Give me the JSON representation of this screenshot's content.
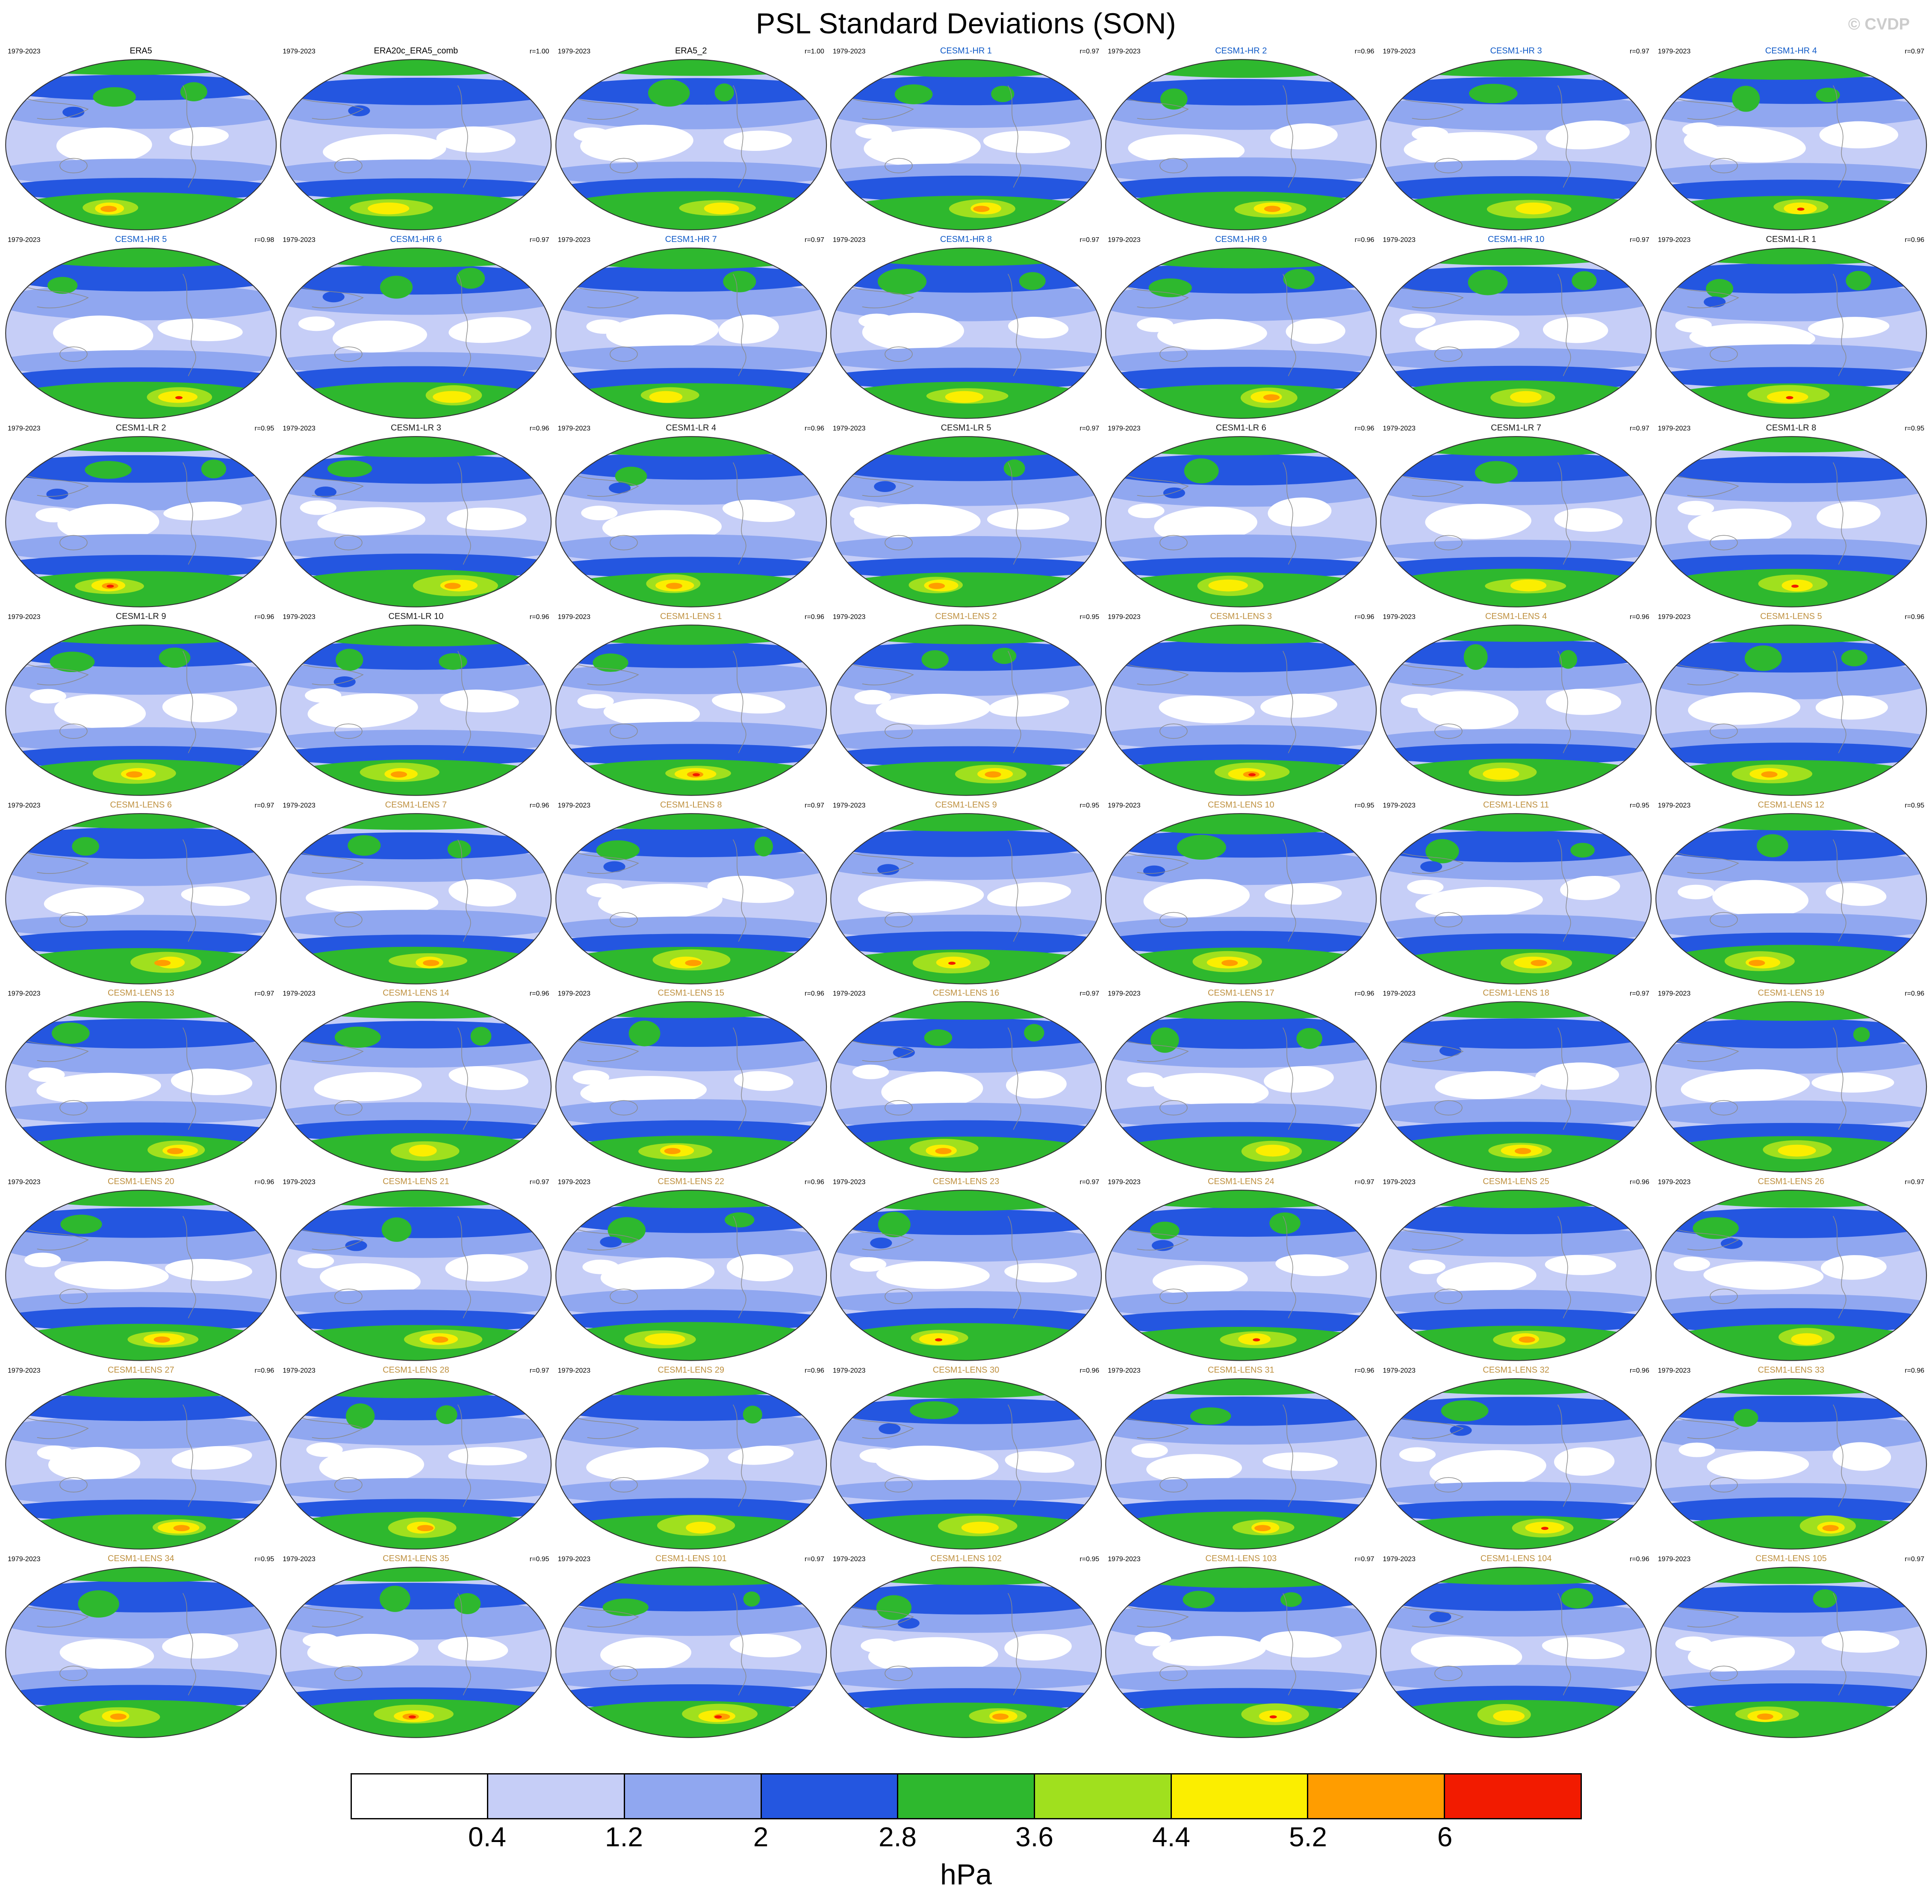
{
  "title": "PSL Standard Deviations (SON)",
  "watermark": "© CVDP",
  "period": "1979-2023",
  "colorbar": {
    "labels": [
      "0.4",
      "1.2",
      "2",
      "2.8",
      "3.6",
      "4.4",
      "5.2",
      "6"
    ],
    "unit": "hPa",
    "colors": [
      "#ffffff",
      "#c6cef7",
      "#90a7f0",
      "#2456e0",
      "#2eb82e",
      "#a0e01e",
      "#fbee00",
      "#ff9d00",
      "#f21b00"
    ]
  },
  "group_colors": {
    "obs": "#000000",
    "hr": "#0f5ac8",
    "lr": "#1a1a1a",
    "lens": "#bf9140"
  },
  "map_colors": {
    "white": "#ffffff",
    "pale": "#c6cef7",
    "mid": "#90a7f0",
    "blue": "#2456e0",
    "green": "#2eb82e",
    "ygreen": "#a0e01e",
    "yellow": "#fbee00",
    "orange": "#ff9d00",
    "red": "#f21b00",
    "coast": "#8a8a8a",
    "outline": "#333333"
  },
  "chart_data": {
    "type": "heatmap",
    "title": "PSL Standard Deviations (SON)",
    "unit": "hPa",
    "period": "1979-2023",
    "levels": [
      0.4,
      1.2,
      2,
      2.8,
      3.6,
      4.4,
      5.2,
      6
    ],
    "grid": {
      "rows": 9,
      "cols": 7
    },
    "panels": [
      {
        "title": "ERA5",
        "r": "",
        "group": "obs"
      },
      {
        "title": "ERA20c_ERA5_comb",
        "r": "r=1.00",
        "group": "obs"
      },
      {
        "title": "ERA5_2",
        "r": "r=1.00",
        "group": "obs"
      },
      {
        "title": "CESM1-HR 1",
        "r": "r=0.97",
        "group": "hr"
      },
      {
        "title": "CESM1-HR 2",
        "r": "r=0.96",
        "group": "hr"
      },
      {
        "title": "CESM1-HR 3",
        "r": "r=0.97",
        "group": "hr"
      },
      {
        "title": "CESM1-HR 4",
        "r": "r=0.97",
        "group": "hr"
      },
      {
        "title": "CESM1-HR 5",
        "r": "r=0.98",
        "group": "hr"
      },
      {
        "title": "CESM1-HR 6",
        "r": "r=0.97",
        "group": "hr"
      },
      {
        "title": "CESM1-HR 7",
        "r": "r=0.97",
        "group": "hr"
      },
      {
        "title": "CESM1-HR 8",
        "r": "r=0.97",
        "group": "hr"
      },
      {
        "title": "CESM1-HR 9",
        "r": "r=0.96",
        "group": "hr"
      },
      {
        "title": "CESM1-HR 10",
        "r": "r=0.97",
        "group": "hr"
      },
      {
        "title": "CESM1-LR 1",
        "r": "r=0.96",
        "group": "lr"
      },
      {
        "title": "CESM1-LR 2",
        "r": "r=0.95",
        "group": "lr"
      },
      {
        "title": "CESM1-LR 3",
        "r": "r=0.96",
        "group": "lr"
      },
      {
        "title": "CESM1-LR 4",
        "r": "r=0.96",
        "group": "lr"
      },
      {
        "title": "CESM1-LR 5",
        "r": "r=0.97",
        "group": "lr"
      },
      {
        "title": "CESM1-LR 6",
        "r": "r=0.96",
        "group": "lr"
      },
      {
        "title": "CESM1-LR 7",
        "r": "r=0.97",
        "group": "lr"
      },
      {
        "title": "CESM1-LR 8",
        "r": "r=0.95",
        "group": "lr"
      },
      {
        "title": "CESM1-LR 9",
        "r": "r=0.96",
        "group": "lr"
      },
      {
        "title": "CESM1-LR 10",
        "r": "r=0.96",
        "group": "lr"
      },
      {
        "title": "CESM1-LENS 1",
        "r": "r=0.96",
        "group": "lens"
      },
      {
        "title": "CESM1-LENS 2",
        "r": "r=0.95",
        "group": "lens"
      },
      {
        "title": "CESM1-LENS 3",
        "r": "r=0.96",
        "group": "lens"
      },
      {
        "title": "CESM1-LENS 4",
        "r": "r=0.96",
        "group": "lens"
      },
      {
        "title": "CESM1-LENS 5",
        "r": "r=0.96",
        "group": "lens"
      },
      {
        "title": "CESM1-LENS 6",
        "r": "r=0.97",
        "group": "lens"
      },
      {
        "title": "CESM1-LENS 7",
        "r": "r=0.96",
        "group": "lens"
      },
      {
        "title": "CESM1-LENS 8",
        "r": "r=0.97",
        "group": "lens"
      },
      {
        "title": "CESM1-LENS 9",
        "r": "r=0.95",
        "group": "lens"
      },
      {
        "title": "CESM1-LENS 10",
        "r": "r=0.95",
        "group": "lens"
      },
      {
        "title": "CESM1-LENS 11",
        "r": "r=0.95",
        "group": "lens"
      },
      {
        "title": "CESM1-LENS 12",
        "r": "r=0.95",
        "group": "lens"
      },
      {
        "title": "CESM1-LENS 13",
        "r": "r=0.97",
        "group": "lens"
      },
      {
        "title": "CESM1-LENS 14",
        "r": "r=0.96",
        "group": "lens"
      },
      {
        "title": "CESM1-LENS 15",
        "r": "r=0.96",
        "group": "lens"
      },
      {
        "title": "CESM1-LENS 16",
        "r": "r=0.97",
        "group": "lens"
      },
      {
        "title": "CESM1-LENS 17",
        "r": "r=0.96",
        "group": "lens"
      },
      {
        "title": "CESM1-LENS 18",
        "r": "r=0.97",
        "group": "lens"
      },
      {
        "title": "CESM1-LENS 19",
        "r": "r=0.96",
        "group": "lens"
      },
      {
        "title": "CESM1-LENS 20",
        "r": "r=0.96",
        "group": "lens"
      },
      {
        "title": "CESM1-LENS 21",
        "r": "r=0.97",
        "group": "lens"
      },
      {
        "title": "CESM1-LENS 22",
        "r": "r=0.96",
        "group": "lens"
      },
      {
        "title": "CESM1-LENS 23",
        "r": "r=0.97",
        "group": "lens"
      },
      {
        "title": "CESM1-LENS 24",
        "r": "r=0.97",
        "group": "lens"
      },
      {
        "title": "CESM1-LENS 25",
        "r": "r=0.96",
        "group": "lens"
      },
      {
        "title": "CESM1-LENS 26",
        "r": "r=0.97",
        "group": "lens"
      },
      {
        "title": "CESM1-LENS 27",
        "r": "r=0.96",
        "group": "lens"
      },
      {
        "title": "CESM1-LENS 28",
        "r": "r=0.97",
        "group": "lens"
      },
      {
        "title": "CESM1-LENS 29",
        "r": "r=0.96",
        "group": "lens"
      },
      {
        "title": "CESM1-LENS 30",
        "r": "r=0.96",
        "group": "lens"
      },
      {
        "title": "CESM1-LENS 31",
        "r": "r=0.96",
        "group": "lens"
      },
      {
        "title": "CESM1-LENS 32",
        "r": "r=0.96",
        "group": "lens"
      },
      {
        "title": "CESM1-LENS 33",
        "r": "r=0.96",
        "group": "lens"
      },
      {
        "title": "CESM1-LENS 34",
        "r": "r=0.95",
        "group": "lens"
      },
      {
        "title": "CESM1-LENS 35",
        "r": "r=0.95",
        "group": "lens"
      },
      {
        "title": "CESM1-LENS 101",
        "r": "r=0.97",
        "group": "lens"
      },
      {
        "title": "CESM1-LENS 102",
        "r": "r=0.95",
        "group": "lens"
      },
      {
        "title": "CESM1-LENS 103",
        "r": "r=0.97",
        "group": "lens"
      },
      {
        "title": "CESM1-LENS 104",
        "r": "r=0.96",
        "group": "lens"
      },
      {
        "title": "CESM1-LENS 105",
        "r": "r=0.97",
        "group": "lens"
      }
    ]
  }
}
